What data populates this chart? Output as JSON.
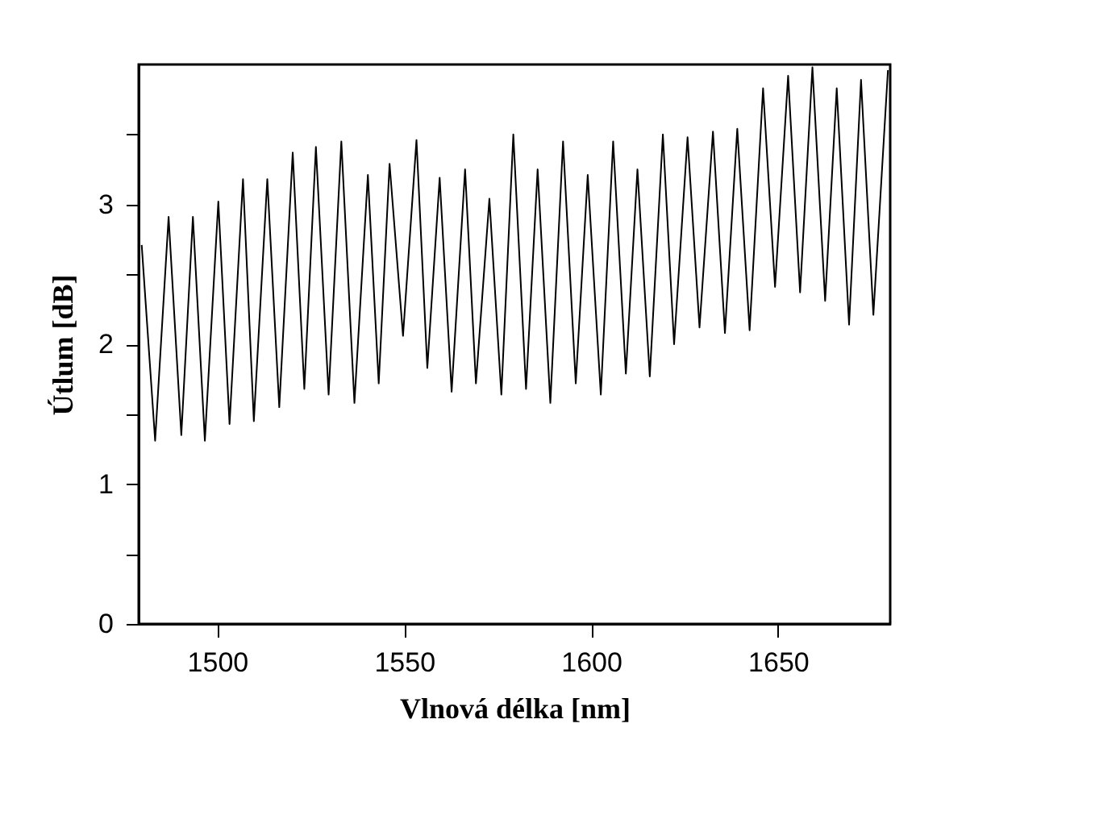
{
  "chart_data": {
    "type": "line",
    "xlabel": "Vlnová délka [nm]",
    "ylabel": "Útlum [dB]",
    "x": [
      1479.8,
      1483.4,
      1487.0,
      1490.4,
      1493.5,
      1496.7,
      1500.3,
      1503.3,
      1506.9,
      1509.8,
      1513.4,
      1516.6,
      1520.2,
      1523.3,
      1526.4,
      1529.8,
      1533.2,
      1536.7,
      1540.3,
      1543.2,
      1546.1,
      1549.7,
      1553.3,
      1556.2,
      1559.5,
      1562.7,
      1566.3,
      1569.2,
      1572.8,
      1576.0,
      1579.2,
      1582.6,
      1585.7,
      1589.1,
      1592.5,
      1595.9,
      1599.1,
      1602.6,
      1605.9,
      1609.3,
      1612.4,
      1615.7,
      1619.2,
      1622.2,
      1625.8,
      1629.0,
      1632.6,
      1635.8,
      1639.1,
      1642.4,
      1646.0,
      1649.2,
      1652.7,
      1655.9,
      1659.2,
      1662.6,
      1665.7,
      1669.0,
      1672.2,
      1675.5,
      1679.4
    ],
    "series": [
      {
        "color": "#000000",
        "values": [
          2.71,
          1.31,
          2.91,
          1.35,
          2.91,
          1.31,
          3.02,
          1.43,
          3.18,
          1.45,
          3.18,
          1.55,
          3.37,
          1.68,
          3.41,
          1.64,
          3.45,
          1.58,
          3.21,
          1.72,
          3.29,
          2.06,
          3.46,
          1.83,
          3.19,
          1.66,
          3.25,
          1.72,
          3.04,
          1.64,
          3.5,
          1.68,
          3.25,
          1.58,
          3.45,
          1.72,
          3.21,
          1.64,
          3.45,
          1.79,
          3.25,
          1.77,
          3.5,
          2.0,
          3.48,
          2.12,
          3.52,
          2.08,
          3.54,
          2.1,
          3.83,
          2.41,
          3.92,
          2.37,
          3.98,
          2.31,
          3.83,
          2.14,
          3.89,
          2.21,
          3.96
        ]
      }
    ],
    "xlim": [
      1479,
      1680
    ],
    "xticks": [
      1500,
      1550,
      1600,
      1650
    ],
    "ylim": [
      0,
      4
    ],
    "yticks": [
      0,
      {
        "value": 0.5,
        "label": null
      },
      1,
      {
        "value": 1.5,
        "label": null
      },
      2,
      {
        "value": 2.5,
        "label": null
      },
      3,
      {
        "value": 3.5,
        "label": null
      }
    ],
    "grid": false,
    "marker": "none",
    "line_style": "solid"
  }
}
